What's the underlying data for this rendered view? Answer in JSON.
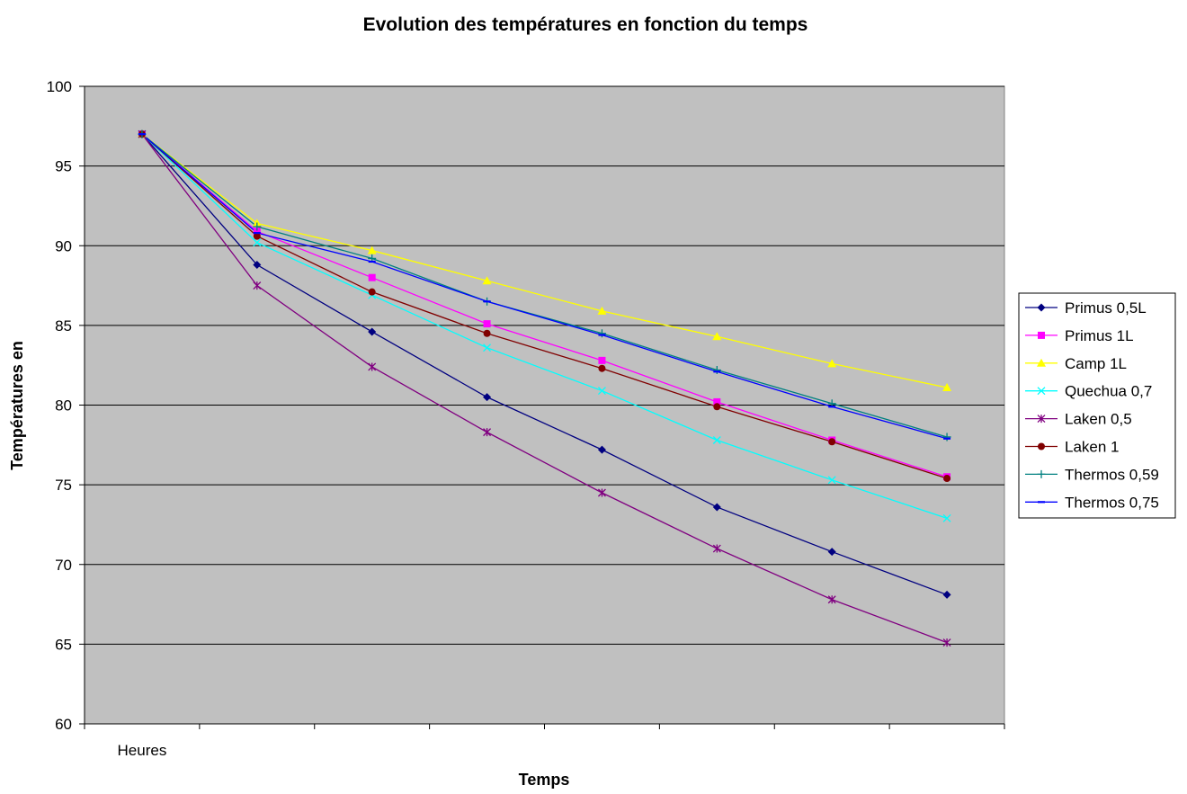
{
  "chart_data": {
    "type": "line",
    "title": "Evolution des températures en fonction du temps",
    "xlabel": "Temps",
    "ylabel": "Températures en",
    "categories": [
      "Heures",
      "",
      "",
      "",
      "",
      "",
      "",
      ""
    ],
    "ylim": [
      60,
      100
    ],
    "yticks": [
      60,
      65,
      70,
      75,
      80,
      85,
      90,
      95,
      100
    ],
    "grid": true,
    "legend_position": "right",
    "plot_background": "#C0C0C0",
    "series": [
      {
        "name": "Primus 0,5L",
        "color": "#000080",
        "marker": "diamond",
        "values": [
          97,
          88.8,
          84.6,
          80.5,
          77.2,
          73.6,
          70.8,
          68.1
        ]
      },
      {
        "name": "Primus 1L",
        "color": "#FF00FF",
        "marker": "square",
        "values": [
          97,
          90.9,
          88.0,
          85.1,
          82.8,
          80.2,
          77.8,
          75.5
        ]
      },
      {
        "name": "Camp 1L",
        "color": "#FFFF00",
        "marker": "triangle",
        "values": [
          97,
          91.4,
          89.7,
          87.8,
          85.9,
          84.3,
          82.6,
          81.1
        ]
      },
      {
        "name": "Quechua 0,7",
        "color": "#00FFFF",
        "marker": "x",
        "values": [
          97,
          90.2,
          86.9,
          83.6,
          80.9,
          77.8,
          75.3,
          72.9
        ]
      },
      {
        "name": "Laken 0,5",
        "color": "#800080",
        "marker": "star",
        "values": [
          97,
          87.5,
          82.4,
          78.3,
          74.5,
          71.0,
          67.8,
          65.1
        ]
      },
      {
        "name": "Laken 1",
        "color": "#800000",
        "marker": "circle",
        "values": [
          97,
          90.6,
          87.1,
          84.5,
          82.3,
          79.9,
          77.7,
          75.4
        ]
      },
      {
        "name": "Thermos 0,59",
        "color": "#008080",
        "marker": "plus",
        "values": [
          97,
          91.2,
          89.2,
          86.5,
          84.5,
          82.2,
          80.1,
          78.0
        ]
      },
      {
        "name": "Thermos 0,75",
        "color": "#0000FF",
        "marker": "dash",
        "values": [
          97,
          90.8,
          89.0,
          86.5,
          84.4,
          82.1,
          79.9,
          77.9
        ]
      }
    ]
  }
}
